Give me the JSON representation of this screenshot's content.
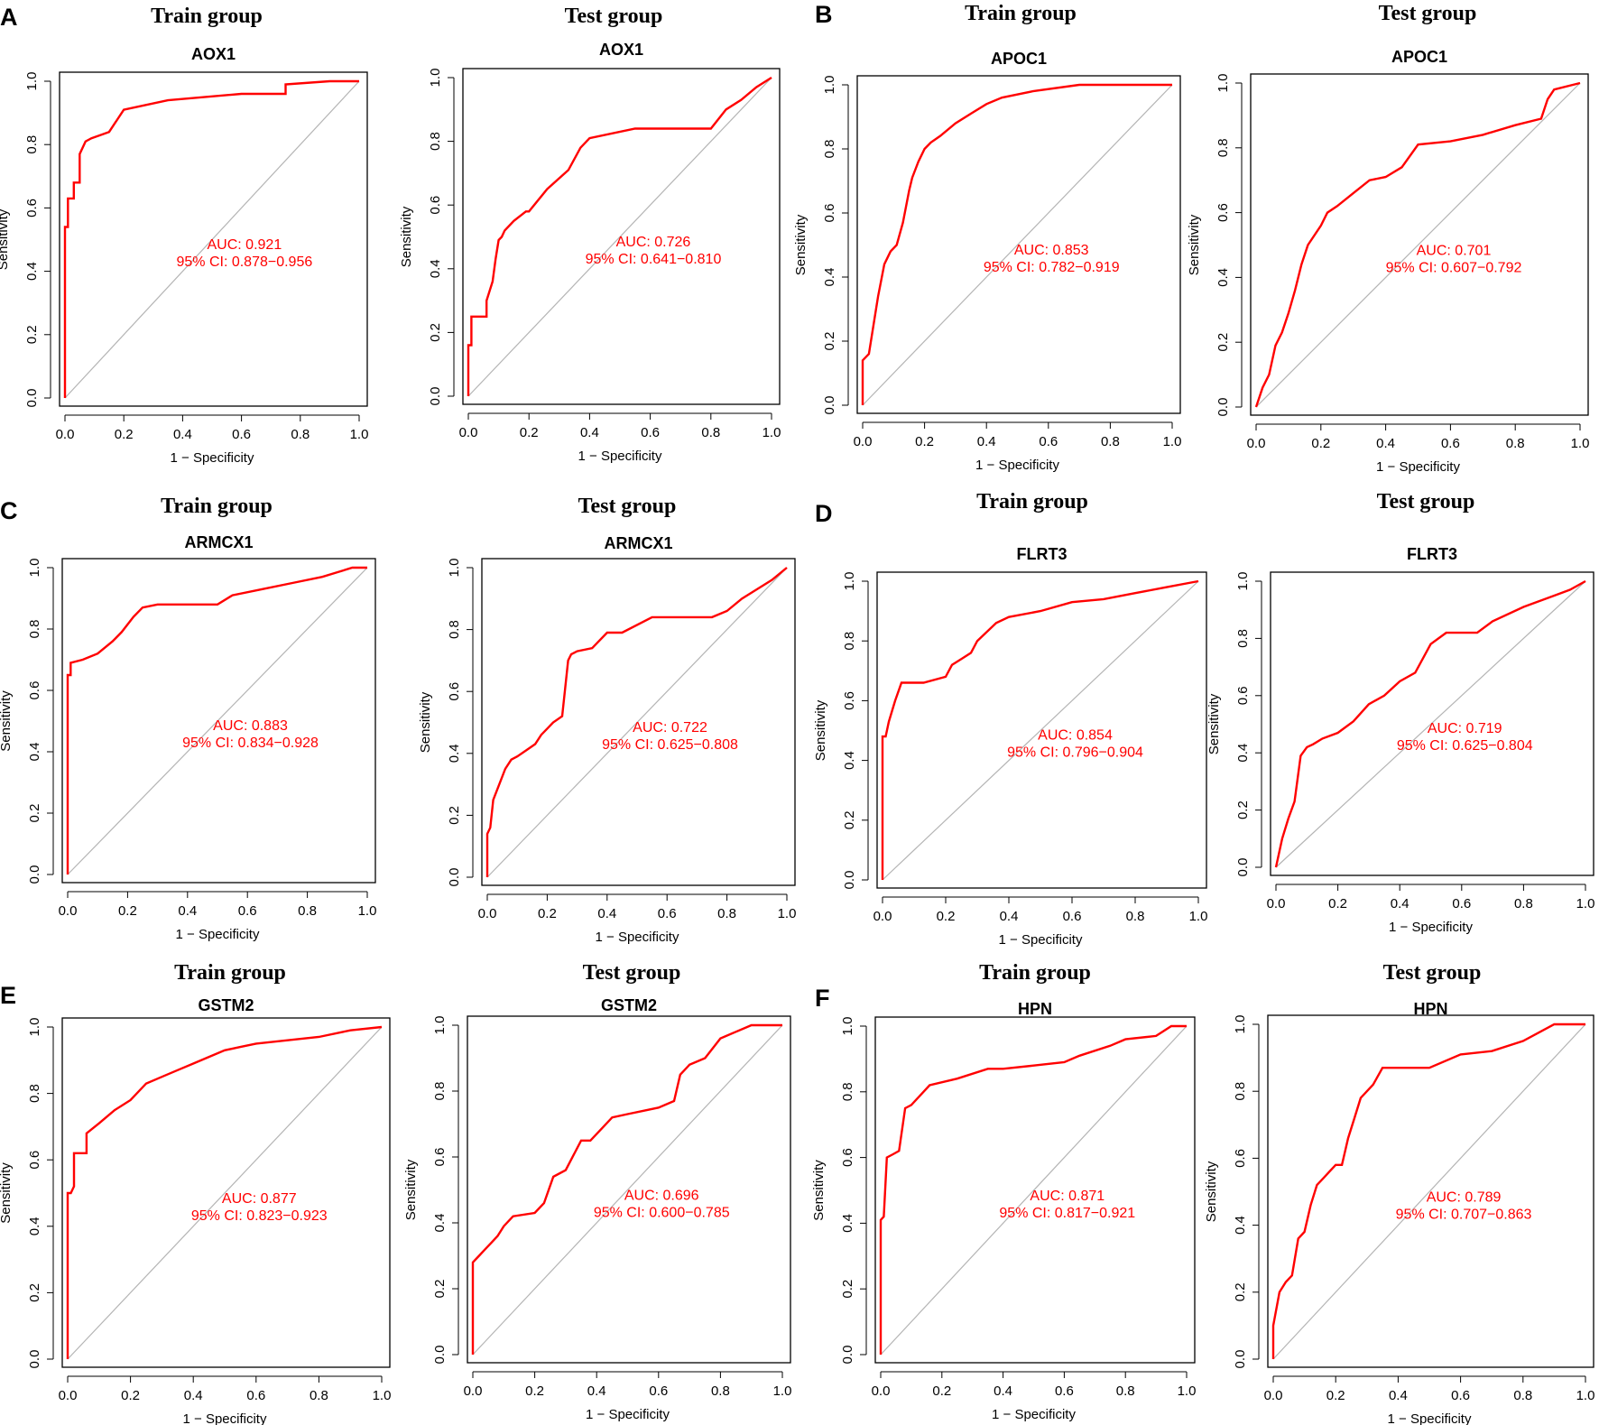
{
  "colors": {
    "roc": "#ff0000",
    "diagonal": "#b4b4b4",
    "axis": "#000000"
  },
  "chart_data": [
    {
      "type": "line",
      "panel": "A",
      "group": "Train group",
      "gene": "AOX1",
      "xlabel": "1 − Specificity",
      "ylabel": "Sensitivity",
      "xlim": [
        0,
        1
      ],
      "ylim": [
        0,
        1
      ],
      "ticks": [
        "0.0",
        "0.2",
        "0.4",
        "0.6",
        "0.8",
        "1.0"
      ],
      "auc_text": "AUC: 0.921",
      "ci_text": "95% CI: 0.878−0.956",
      "x": [
        0,
        0,
        0.01,
        0.01,
        0.03,
        0.03,
        0.05,
        0.05,
        0.07,
        0.09,
        0.12,
        0.15,
        0.2,
        0.35,
        0.6,
        0.75,
        0.75,
        0.9,
        1.0
      ],
      "y": [
        0,
        0.54,
        0.54,
        0.63,
        0.63,
        0.68,
        0.68,
        0.77,
        0.81,
        0.82,
        0.83,
        0.84,
        0.91,
        0.94,
        0.96,
        0.96,
        0.99,
        1.0,
        1.0
      ]
    },
    {
      "type": "line",
      "panel": "",
      "group": "Test group",
      "gene": "AOX1",
      "xlabel": "1 − Specificity",
      "ylabel": "Sensitivity",
      "xlim": [
        0,
        1
      ],
      "ylim": [
        0,
        1
      ],
      "ticks": [
        "0.0",
        "0.2",
        "0.4",
        "0.6",
        "0.8",
        "1.0"
      ],
      "auc_text": "AUC: 0.726",
      "ci_text": "95% CI: 0.641−0.810",
      "x": [
        0,
        0,
        0.01,
        0.01,
        0.06,
        0.06,
        0.08,
        0.09,
        0.1,
        0.11,
        0.12,
        0.15,
        0.19,
        0.2,
        0.26,
        0.33,
        0.37,
        0.4,
        0.55,
        0.8,
        0.85,
        0.9,
        0.95,
        1.0
      ],
      "y": [
        0,
        0.16,
        0.16,
        0.25,
        0.25,
        0.3,
        0.36,
        0.43,
        0.49,
        0.5,
        0.52,
        0.55,
        0.58,
        0.58,
        0.65,
        0.71,
        0.78,
        0.81,
        0.84,
        0.84,
        0.9,
        0.93,
        0.97,
        1.0
      ]
    },
    {
      "type": "line",
      "panel": "B",
      "group": "Train group",
      "gene": "APOC1",
      "xlabel": "1 − Specificity",
      "ylabel": "Sensitivity",
      "xlim": [
        0,
        1
      ],
      "ylim": [
        0,
        1
      ],
      "ticks": [
        "0.0",
        "0.2",
        "0.4",
        "0.6",
        "0.8",
        "1.0"
      ],
      "auc_text": "AUC: 0.853",
      "ci_text": "95% CI: 0.782−0.919",
      "x": [
        0,
        0,
        0.02,
        0.04,
        0.05,
        0.07,
        0.09,
        0.11,
        0.13,
        0.15,
        0.16,
        0.18,
        0.2,
        0.22,
        0.25,
        0.3,
        0.35,
        0.4,
        0.45,
        0.55,
        0.7,
        1.0
      ],
      "y": [
        0,
        0.14,
        0.16,
        0.28,
        0.34,
        0.44,
        0.48,
        0.5,
        0.57,
        0.67,
        0.71,
        0.76,
        0.8,
        0.82,
        0.84,
        0.88,
        0.91,
        0.94,
        0.96,
        0.98,
        1.0,
        1.0
      ]
    },
    {
      "type": "line",
      "panel": "",
      "group": "Test group",
      "gene": "APOC1",
      "xlabel": "1 − Specificity",
      "ylabel": "Sensitivity",
      "xlim": [
        0,
        1
      ],
      "ylim": [
        0,
        1
      ],
      "ticks": [
        "0.0",
        "0.2",
        "0.4",
        "0.6",
        "0.8",
        "1.0"
      ],
      "auc_text": "AUC: 0.701",
      "ci_text": "95% CI: 0.607−0.792",
      "x": [
        0,
        0.02,
        0.04,
        0.06,
        0.08,
        0.1,
        0.12,
        0.14,
        0.16,
        0.2,
        0.22,
        0.25,
        0.3,
        0.35,
        0.4,
        0.45,
        0.5,
        0.6,
        0.7,
        0.8,
        0.88,
        0.9,
        0.92,
        1.0
      ],
      "y": [
        0,
        0.06,
        0.1,
        0.19,
        0.23,
        0.29,
        0.36,
        0.44,
        0.5,
        0.56,
        0.6,
        0.62,
        0.66,
        0.7,
        0.71,
        0.74,
        0.81,
        0.82,
        0.84,
        0.87,
        0.89,
        0.95,
        0.98,
        1.0
      ]
    },
    {
      "type": "line",
      "panel": "C",
      "group": "Train group",
      "gene": "ARMCX1",
      "xlabel": "1 − Specificity",
      "ylabel": "Sensitivity",
      "xlim": [
        0,
        1
      ],
      "ylim": [
        0,
        1
      ],
      "ticks": [
        "0.0",
        "0.2",
        "0.4",
        "0.6",
        "0.8",
        "1.0"
      ],
      "auc_text": "AUC: 0.883",
      "ci_text": "95% CI: 0.834−0.928",
      "x": [
        0,
        0,
        0.01,
        0.01,
        0.05,
        0.1,
        0.15,
        0.18,
        0.22,
        0.25,
        0.3,
        0.4,
        0.5,
        0.55,
        0.65,
        0.75,
        0.85,
        0.95,
        1.0
      ],
      "y": [
        0,
        0.65,
        0.65,
        0.69,
        0.7,
        0.72,
        0.76,
        0.79,
        0.84,
        0.87,
        0.88,
        0.88,
        0.88,
        0.91,
        0.93,
        0.95,
        0.97,
        1.0,
        1.0
      ]
    },
    {
      "type": "line",
      "panel": "",
      "group": "Test group",
      "gene": "ARMCX1",
      "xlabel": "1 − Specificity",
      "ylabel": "Sensitivity",
      "xlim": [
        0,
        1
      ],
      "ylim": [
        0,
        1
      ],
      "ticks": [
        "0.0",
        "0.2",
        "0.4",
        "0.6",
        "0.8",
        "1.0"
      ],
      "auc_text": "AUC: 0.722",
      "ci_text": "95% CI: 0.625−0.808",
      "x": [
        0,
        0,
        0.01,
        0.02,
        0.04,
        0.06,
        0.08,
        0.1,
        0.13,
        0.16,
        0.18,
        0.2,
        0.22,
        0.25,
        0.27,
        0.28,
        0.3,
        0.35,
        0.4,
        0.45,
        0.55,
        0.75,
        0.8,
        0.85,
        0.9,
        0.95,
        1.0
      ],
      "y": [
        0,
        0.14,
        0.16,
        0.25,
        0.3,
        0.35,
        0.38,
        0.39,
        0.41,
        0.43,
        0.46,
        0.48,
        0.5,
        0.52,
        0.7,
        0.72,
        0.73,
        0.74,
        0.79,
        0.79,
        0.84,
        0.84,
        0.86,
        0.9,
        0.93,
        0.96,
        1.0
      ]
    },
    {
      "type": "line",
      "panel": "D",
      "group": "Train group",
      "gene": "FLRT3",
      "xlabel": "1 − Specificity",
      "ylabel": "Sensitivity",
      "xlim": [
        0,
        1
      ],
      "ylim": [
        0,
        1
      ],
      "ticks": [
        "0.0",
        "0.2",
        "0.4",
        "0.6",
        "0.8",
        "1.0"
      ],
      "auc_text": "AUC: 0.854",
      "ci_text": "95% CI: 0.796−0.904",
      "x": [
        0,
        0,
        0.01,
        0.02,
        0.04,
        0.06,
        0.1,
        0.13,
        0.2,
        0.22,
        0.25,
        0.28,
        0.3,
        0.33,
        0.36,
        0.4,
        0.5,
        0.6,
        0.7,
        0.8,
        0.9,
        1.0
      ],
      "y": [
        0,
        0.48,
        0.48,
        0.53,
        0.6,
        0.66,
        0.66,
        0.66,
        0.68,
        0.72,
        0.74,
        0.76,
        0.8,
        0.83,
        0.86,
        0.88,
        0.9,
        0.93,
        0.94,
        0.96,
        0.98,
        1.0
      ]
    },
    {
      "type": "line",
      "panel": "",
      "group": "Test group",
      "gene": "FLRT3",
      "xlabel": "1 − Specificity",
      "ylabel": "Sensitivity",
      "xlim": [
        0,
        1
      ],
      "ylim": [
        0,
        1
      ],
      "ticks": [
        "0.0",
        "0.2",
        "0.4",
        "0.6",
        "0.8",
        "1.0"
      ],
      "auc_text": "AUC: 0.719",
      "ci_text": "95% CI: 0.625−0.804",
      "x": [
        0,
        0.02,
        0.04,
        0.06,
        0.08,
        0.1,
        0.12,
        0.15,
        0.2,
        0.25,
        0.3,
        0.35,
        0.4,
        0.45,
        0.5,
        0.55,
        0.65,
        0.7,
        0.8,
        0.9,
        0.95,
        1.0
      ],
      "y": [
        0,
        0.1,
        0.17,
        0.23,
        0.39,
        0.42,
        0.43,
        0.45,
        0.47,
        0.51,
        0.57,
        0.6,
        0.65,
        0.68,
        0.78,
        0.82,
        0.82,
        0.86,
        0.91,
        0.95,
        0.97,
        1.0
      ]
    },
    {
      "type": "line",
      "panel": "E",
      "group": "Train group",
      "gene": "GSTM2",
      "xlabel": "1 − Specificity",
      "ylabel": "Sensitivity",
      "xlim": [
        0,
        1
      ],
      "ylim": [
        0,
        1
      ],
      "ticks": [
        "0.0",
        "0.2",
        "0.4",
        "0.6",
        "0.8",
        "1.0"
      ],
      "auc_text": "AUC: 0.877",
      "ci_text": "95% CI: 0.823−0.923",
      "x": [
        0,
        0,
        0.01,
        0.02,
        0.02,
        0.06,
        0.06,
        0.1,
        0.15,
        0.2,
        0.25,
        0.3,
        0.35,
        0.4,
        0.45,
        0.5,
        0.55,
        0.6,
        0.7,
        0.8,
        0.9,
        1.0
      ],
      "y": [
        0,
        0.5,
        0.5,
        0.52,
        0.62,
        0.62,
        0.68,
        0.71,
        0.75,
        0.78,
        0.83,
        0.85,
        0.87,
        0.89,
        0.91,
        0.93,
        0.94,
        0.95,
        0.96,
        0.97,
        0.99,
        1.0
      ]
    },
    {
      "type": "line",
      "panel": "",
      "group": "Test group",
      "gene": "GSTM2",
      "xlabel": "1 − Specificity",
      "ylabel": "Sensitivity",
      "xlim": [
        0,
        1
      ],
      "ylim": [
        0,
        1
      ],
      "ticks": [
        "0.0",
        "0.2",
        "0.4",
        "0.6",
        "0.8",
        "1.0"
      ],
      "auc_text": "AUC: 0.696",
      "ci_text": "95% CI: 0.600−0.785",
      "x": [
        0,
        0,
        0.02,
        0.04,
        0.06,
        0.08,
        0.1,
        0.13,
        0.2,
        0.23,
        0.26,
        0.3,
        0.35,
        0.38,
        0.42,
        0.45,
        0.5,
        0.55,
        0.6,
        0.65,
        0.67,
        0.7,
        0.75,
        0.8,
        0.85,
        0.9,
        1.0
      ],
      "y": [
        0,
        0.28,
        0.3,
        0.32,
        0.34,
        0.36,
        0.39,
        0.42,
        0.43,
        0.46,
        0.54,
        0.56,
        0.65,
        0.65,
        0.69,
        0.72,
        0.73,
        0.74,
        0.75,
        0.77,
        0.85,
        0.88,
        0.9,
        0.96,
        0.98,
        1.0,
        1.0
      ]
    },
    {
      "type": "line",
      "panel": "F",
      "group": "Train group",
      "gene": "HPN",
      "xlabel": "1 − Specificity",
      "ylabel": "Sensitivity",
      "xlim": [
        0,
        1
      ],
      "ylim": [
        0,
        1
      ],
      "ticks": [
        "0.0",
        "0.2",
        "0.4",
        "0.6",
        "0.8",
        "1.0"
      ],
      "auc_text": "AUC: 0.871",
      "ci_text": "95% CI: 0.817−0.921",
      "x": [
        0,
        0,
        0.01,
        0.02,
        0.04,
        0.06,
        0.08,
        0.1,
        0.12,
        0.16,
        0.25,
        0.35,
        0.4,
        0.5,
        0.6,
        0.65,
        0.75,
        0.8,
        0.9,
        0.95,
        1.0
      ],
      "y": [
        0,
        0.41,
        0.42,
        0.6,
        0.61,
        0.62,
        0.75,
        0.76,
        0.78,
        0.82,
        0.84,
        0.87,
        0.87,
        0.88,
        0.89,
        0.91,
        0.94,
        0.96,
        0.97,
        1.0,
        1.0
      ]
    },
    {
      "type": "line",
      "panel": "",
      "group": "Test group",
      "gene": "HPN",
      "xlabel": "1 − Specificity",
      "ylabel": "Sensitivity",
      "xlim": [
        0,
        1
      ],
      "ylim": [
        0,
        1
      ],
      "ticks": [
        "0.0",
        "0.2",
        "0.4",
        "0.6",
        "0.8",
        "1.0"
      ],
      "auc_text": "AUC: 0.789",
      "ci_text": "95% CI: 0.707−0.863",
      "x": [
        0,
        0,
        0.02,
        0.04,
        0.06,
        0.08,
        0.1,
        0.12,
        0.14,
        0.16,
        0.18,
        0.2,
        0.22,
        0.24,
        0.26,
        0.28,
        0.3,
        0.32,
        0.35,
        0.5,
        0.6,
        0.7,
        0.8,
        0.9,
        1.0
      ],
      "y": [
        0,
        0.1,
        0.2,
        0.23,
        0.25,
        0.36,
        0.38,
        0.46,
        0.52,
        0.54,
        0.56,
        0.58,
        0.58,
        0.66,
        0.72,
        0.78,
        0.8,
        0.82,
        0.87,
        0.87,
        0.91,
        0.92,
        0.95,
        1.0,
        1.0
      ]
    }
  ]
}
